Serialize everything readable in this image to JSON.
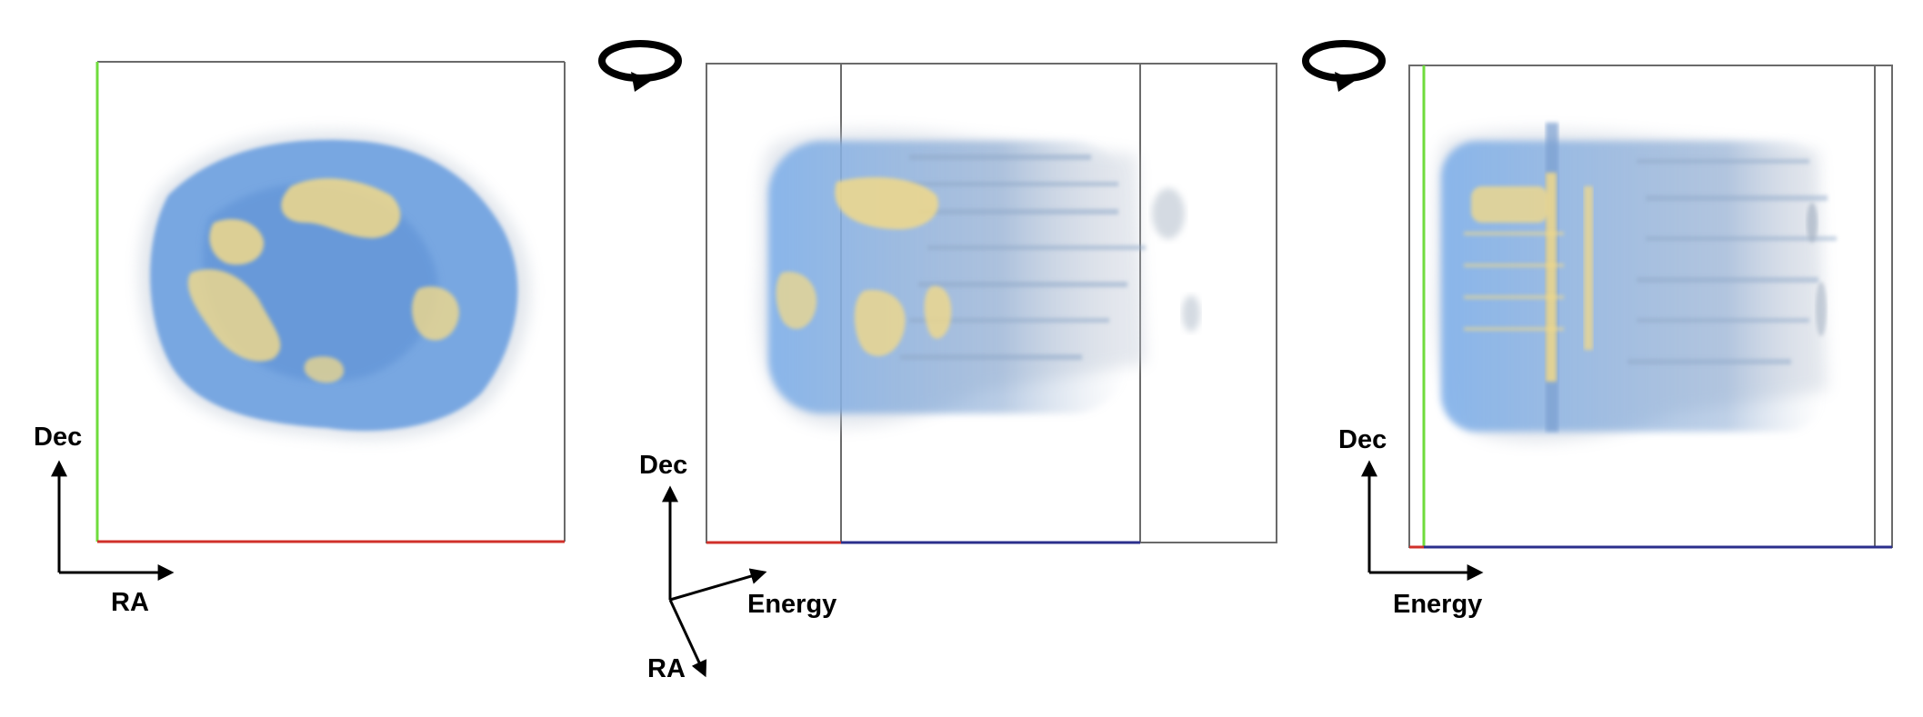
{
  "colors": {
    "ra_axis": "#d0302a",
    "dec_axis": "#6fdc3c",
    "energy_axis": "#2b2f8c",
    "frame": "#6a6a6a",
    "emission_low": "#6b9fe0",
    "emission_high": "#f1d98a",
    "arrow": "#000000"
  },
  "panels": [
    {
      "view": "front",
      "axes": {
        "vertical": "Dec",
        "horizontal": "RA"
      }
    },
    {
      "view": "oblique",
      "rotate_icon": "rotate-clockwise-icon",
      "axes": {
        "vertical": "Dec",
        "horizontal": "Energy",
        "depth": "RA"
      }
    },
    {
      "view": "side",
      "rotate_icon": "rotate-clockwise-icon",
      "axes": {
        "vertical": "Dec",
        "horizontal": "Energy"
      }
    }
  ]
}
